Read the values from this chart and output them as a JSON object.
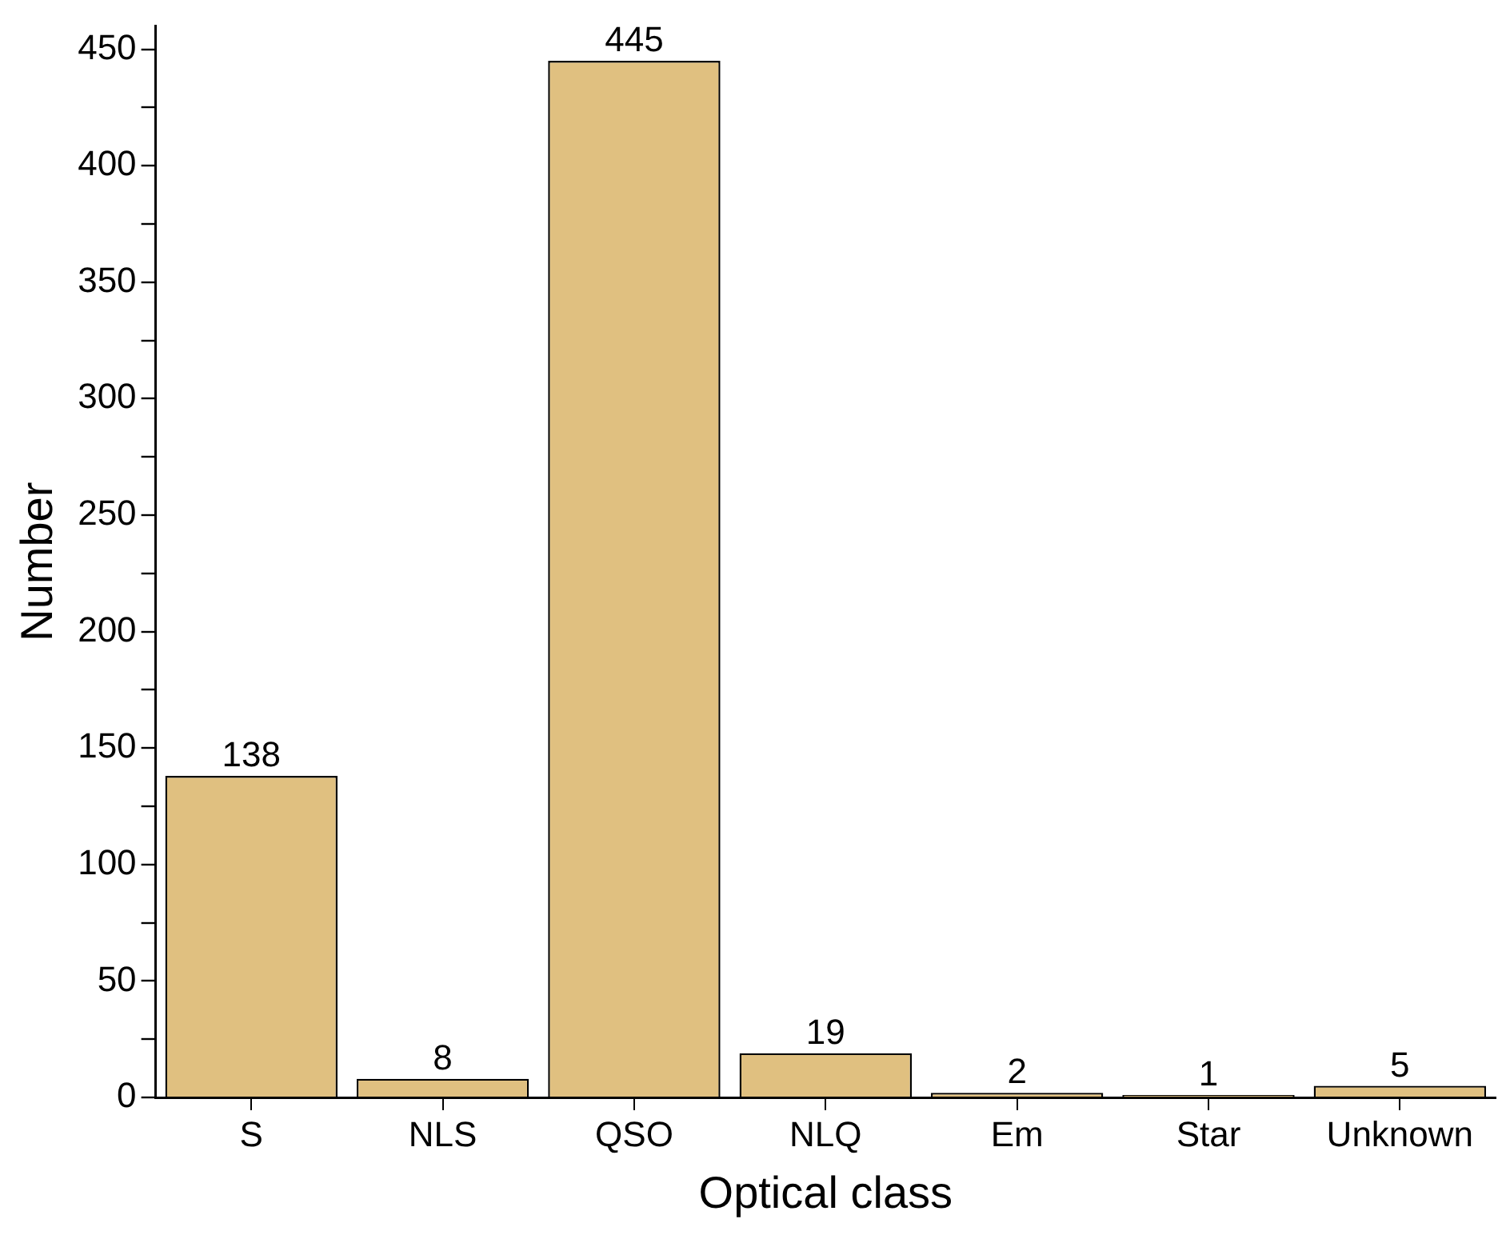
{
  "chart_data": {
    "type": "bar",
    "xlabel": "Optical class",
    "ylabel": "Number",
    "categories": [
      "S",
      "NLS",
      "QSO",
      "NLQ",
      "Em",
      "Star",
      "Unknown"
    ],
    "values": [
      138,
      8,
      445,
      19,
      2,
      1,
      5
    ],
    "color": "#e0c080",
    "ylim": [
      0,
      460
    ],
    "yticks": [
      0,
      {
        "value": 25,
        "label": null
      },
      50,
      {
        "value": 75,
        "label": null
      },
      100,
      {
        "value": 125,
        "label": null
      },
      150,
      {
        "value": 175,
        "label": null
      },
      200,
      {
        "value": 225,
        "label": null
      },
      250,
      {
        "value": 275,
        "label": null
      },
      300,
      {
        "value": 325,
        "label": null
      },
      350,
      {
        "value": 375,
        "label": null
      },
      400,
      {
        "value": 425,
        "label": null
      },
      450
    ],
    "data_labels": true,
    "grid": false,
    "legend": false
  }
}
